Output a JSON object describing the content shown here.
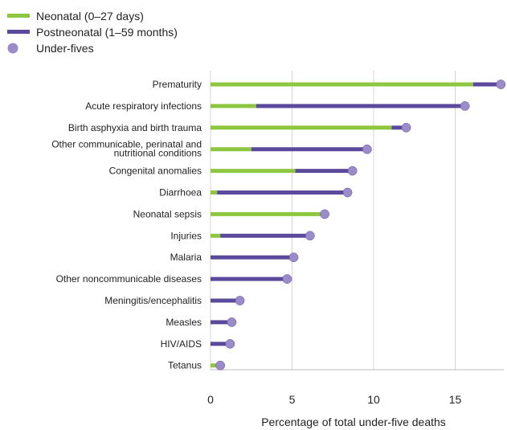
{
  "chart_data": {
    "type": "bar",
    "legend_position": "top-left",
    "grid": true,
    "xlabel": "Percentage of total under-five deaths",
    "xlim": [
      0,
      18
    ],
    "xticks": [
      0,
      5,
      10,
      15
    ],
    "legend": [
      {
        "key": "neonatal",
        "label": "Neonatal (0–27 days)",
        "marker": "line",
        "color": "#8dc63f"
      },
      {
        "key": "postneonatal",
        "label": "Postneonatal (1–59 months)",
        "marker": "line",
        "color": "#5b4a9c"
      },
      {
        "key": "under_fives",
        "label": "Under-fives",
        "marker": "dot",
        "color": "#9b8cc9"
      }
    ],
    "categories": [
      [
        "Prematurity"
      ],
      [
        "Acute respiratory infections"
      ],
      [
        "Birth asphyxia and birth trauma"
      ],
      [
        "Other communicable, perinatal and",
        "nutritional conditions"
      ],
      [
        "Congenital anomalies"
      ],
      [
        "Diarrhoea"
      ],
      [
        "Neonatal sepsis"
      ],
      [
        "Injuries"
      ],
      [
        "Malaria"
      ],
      [
        "Other noncommunicable diseases"
      ],
      [
        "Meningitis/encephalitis"
      ],
      [
        "Measles"
      ],
      [
        "HIV/AIDS"
      ],
      [
        "Tetanus"
      ]
    ],
    "series": [
      {
        "name": "Neonatal (0–27 days)",
        "values": [
          16.1,
          2.8,
          11.1,
          2.5,
          5.2,
          0.4,
          7.0,
          0.6,
          0,
          0,
          0,
          0,
          0,
          0.4
        ]
      },
      {
        "name": "Postneonatal (1–59 months)",
        "values": [
          1.7,
          12.8,
          0.9,
          7.1,
          3.5,
          8.0,
          0,
          5.5,
          5.1,
          4.7,
          1.8,
          1.3,
          1.2,
          0.2
        ]
      },
      {
        "name": "Under-fives",
        "values": [
          17.8,
          15.6,
          12.0,
          9.6,
          8.7,
          8.4,
          7.0,
          6.1,
          5.1,
          4.7,
          1.8,
          1.3,
          1.2,
          0.6
        ]
      }
    ]
  }
}
